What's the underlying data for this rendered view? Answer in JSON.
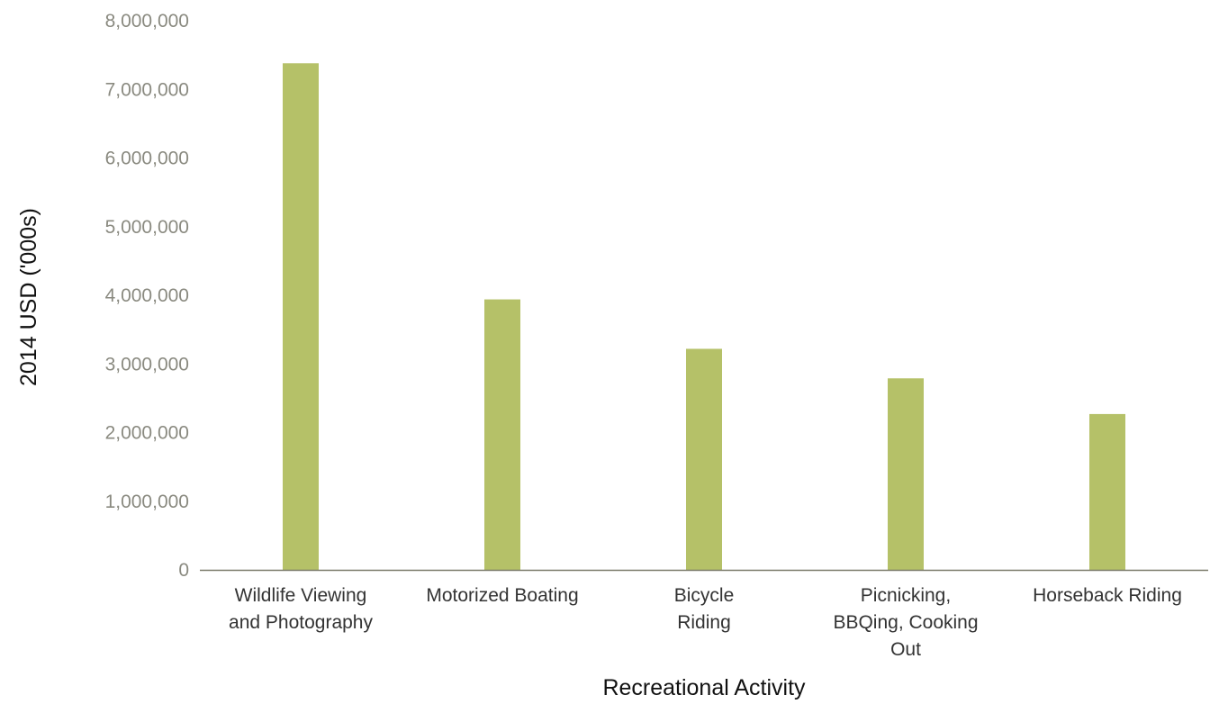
{
  "chart_data": {
    "type": "bar",
    "title": "",
    "xlabel": "Recreational Activity",
    "ylabel": "2014 USD ('000s)",
    "categories": [
      [
        "Wildlife Viewing",
        "and Photography"
      ],
      [
        "Motorized Boating"
      ],
      [
        "Bicycle",
        "Riding"
      ],
      [
        "Picnicking,",
        "BBQing, Cooking",
        "Out"
      ],
      [
        "Horseback Riding"
      ]
    ],
    "values": [
      7380000,
      3940000,
      3220000,
      2790000,
      2270000
    ],
    "ylim": [
      0,
      8000000
    ],
    "yticks": [
      "0",
      "1,000,000",
      "2,000,000",
      "3,000,000",
      "4,000,000",
      "5,000,000",
      "6,000,000",
      "7,000,000",
      "8,000,000"
    ],
    "grid": false,
    "legend": "none",
    "colors": {
      "bar": "#b5c168",
      "axis": "#7a7a6a"
    }
  }
}
